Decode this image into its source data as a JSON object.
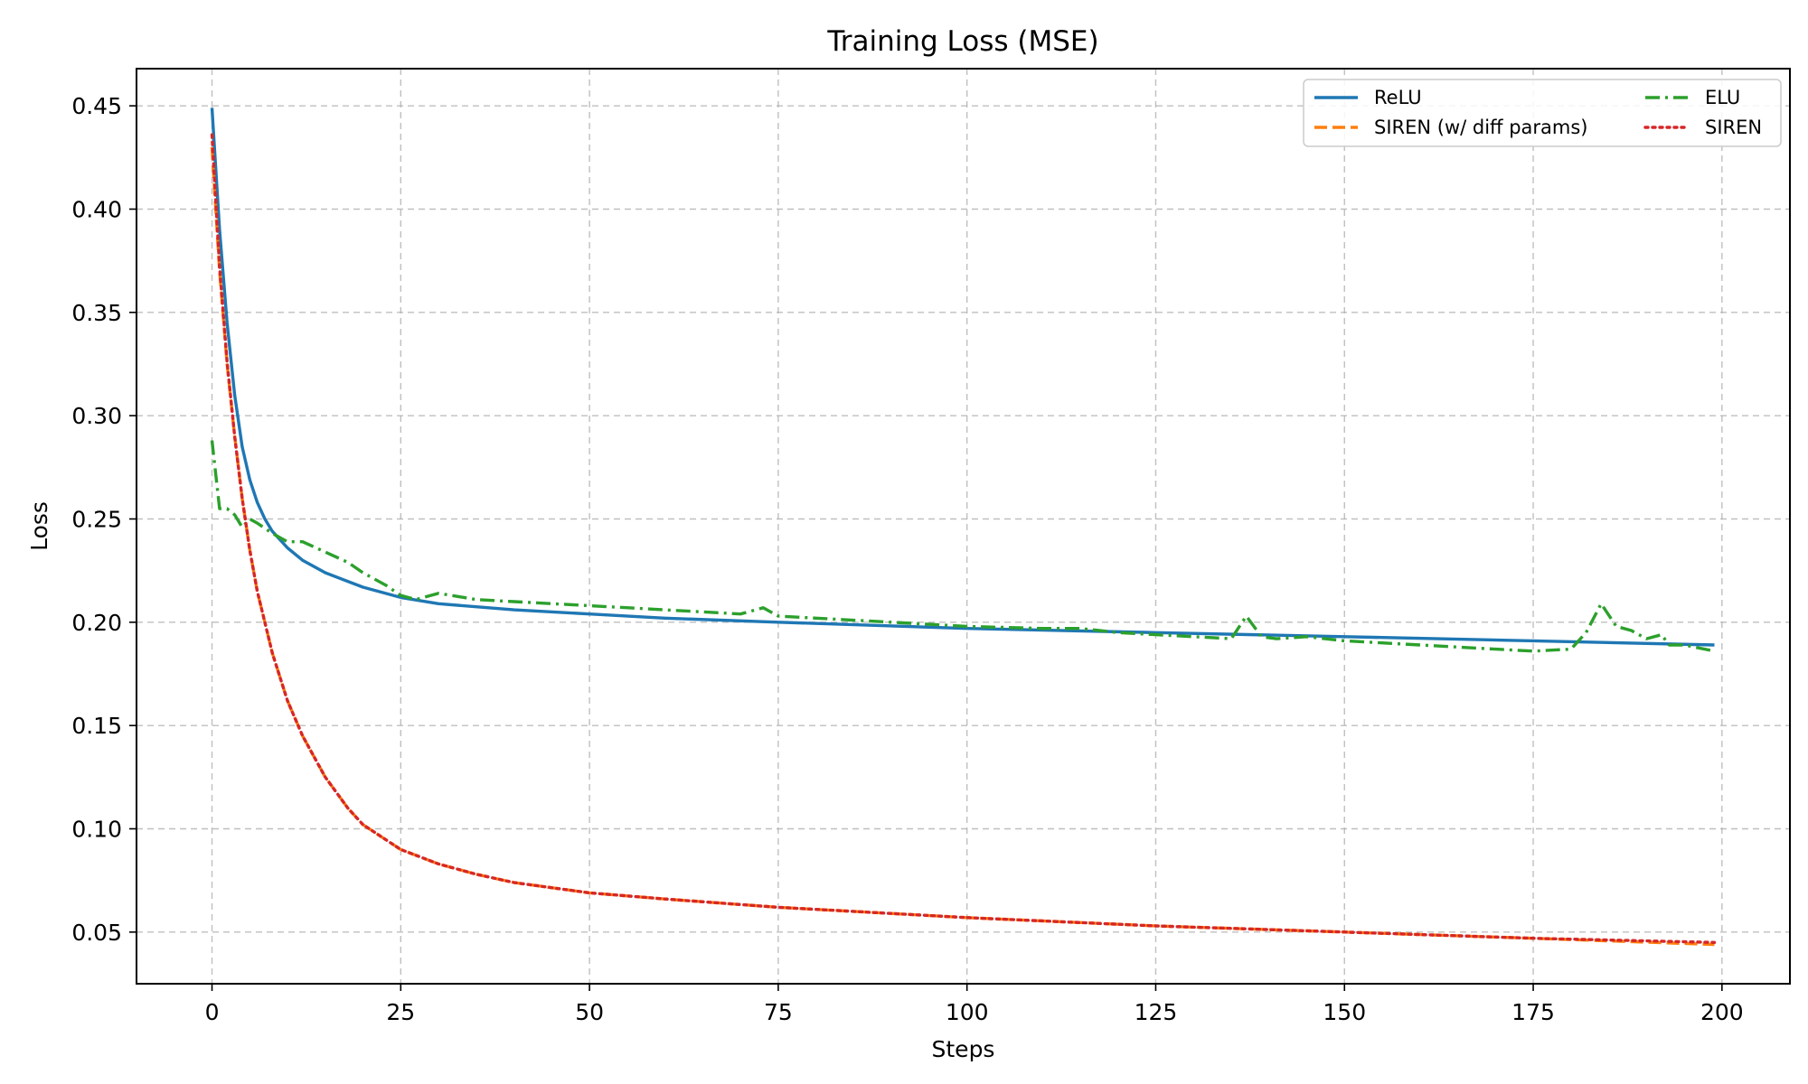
{
  "chart_data": {
    "type": "line",
    "title": "Training Loss (MSE)",
    "xlabel": "Steps",
    "ylabel": "Loss",
    "xlim": [
      -10,
      209
    ],
    "ylim": [
      0.025,
      0.468
    ],
    "xticks": [
      0,
      25,
      50,
      75,
      100,
      125,
      150,
      175,
      200
    ],
    "xtick_labels": [
      "0",
      "25",
      "50",
      "75",
      "100",
      "125",
      "150",
      "175",
      "200"
    ],
    "yticks": [
      0.05,
      0.1,
      0.15,
      0.2,
      0.25,
      0.3,
      0.35,
      0.4,
      0.45
    ],
    "ytick_labels": [
      "0.05",
      "0.10",
      "0.15",
      "0.20",
      "0.25",
      "0.30",
      "0.35",
      "0.40",
      "0.45"
    ],
    "grid": true,
    "legend_position": "top-right",
    "series": [
      {
        "name": "ReLU",
        "color": "#1f77b4",
        "style": "solid",
        "points": [
          [
            0,
            0.449
          ],
          [
            1,
            0.39
          ],
          [
            2,
            0.345
          ],
          [
            3,
            0.31
          ],
          [
            4,
            0.285
          ],
          [
            5,
            0.269
          ],
          [
            6,
            0.258
          ],
          [
            7,
            0.25
          ],
          [
            8,
            0.244
          ],
          [
            10,
            0.236
          ],
          [
            12,
            0.23
          ],
          [
            15,
            0.224
          ],
          [
            20,
            0.217
          ],
          [
            25,
            0.212
          ],
          [
            30,
            0.209
          ],
          [
            40,
            0.206
          ],
          [
            50,
            0.204
          ],
          [
            60,
            0.202
          ],
          [
            75,
            0.2
          ],
          [
            100,
            0.197
          ],
          [
            125,
            0.195
          ],
          [
            150,
            0.193
          ],
          [
            175,
            0.191
          ],
          [
            199,
            0.189
          ]
        ]
      },
      {
        "name": "SIREN (w/ diff params)",
        "color": "#ff7f0e",
        "style": "dashed",
        "points": [
          [
            0,
            0.43
          ],
          [
            1,
            0.37
          ],
          [
            2,
            0.325
          ],
          [
            3,
            0.29
          ],
          [
            4,
            0.26
          ],
          [
            5,
            0.235
          ],
          [
            6,
            0.215
          ],
          [
            8,
            0.185
          ],
          [
            10,
            0.162
          ],
          [
            12,
            0.145
          ],
          [
            15,
            0.125
          ],
          [
            18,
            0.11
          ],
          [
            20,
            0.102
          ],
          [
            25,
            0.09
          ],
          [
            30,
            0.083
          ],
          [
            35,
            0.078
          ],
          [
            40,
            0.074
          ],
          [
            50,
            0.069
          ],
          [
            60,
            0.066
          ],
          [
            75,
            0.062
          ],
          [
            100,
            0.057
          ],
          [
            125,
            0.053
          ],
          [
            150,
            0.05
          ],
          [
            175,
            0.047
          ],
          [
            199,
            0.044
          ]
        ]
      },
      {
        "name": "ELU",
        "color": "#2ca02c",
        "style": "dashdot",
        "points": [
          [
            0,
            0.288
          ],
          [
            1,
            0.255
          ],
          [
            2,
            0.255
          ],
          [
            3,
            0.252
          ],
          [
            4,
            0.246
          ],
          [
            5,
            0.25
          ],
          [
            6,
            0.248
          ],
          [
            8,
            0.243
          ],
          [
            10,
            0.239
          ],
          [
            12,
            0.239
          ],
          [
            15,
            0.234
          ],
          [
            18,
            0.229
          ],
          [
            20,
            0.224
          ],
          [
            23,
            0.218
          ],
          [
            25,
            0.213
          ],
          [
            27,
            0.211
          ],
          [
            30,
            0.214
          ],
          [
            35,
            0.211
          ],
          [
            40,
            0.21
          ],
          [
            50,
            0.208
          ],
          [
            60,
            0.206
          ],
          [
            70,
            0.204
          ],
          [
            73,
            0.207
          ],
          [
            75,
            0.203
          ],
          [
            80,
            0.202
          ],
          [
            90,
            0.2
          ],
          [
            100,
            0.198
          ],
          [
            110,
            0.197
          ],
          [
            115,
            0.197
          ],
          [
            120,
            0.195
          ],
          [
            125,
            0.194
          ],
          [
            130,
            0.193
          ],
          [
            135,
            0.192
          ],
          [
            137,
            0.203
          ],
          [
            139,
            0.193
          ],
          [
            141,
            0.192
          ],
          [
            145,
            0.193
          ],
          [
            150,
            0.191
          ],
          [
            155,
            0.19
          ],
          [
            160,
            0.189
          ],
          [
            165,
            0.188
          ],
          [
            170,
            0.187
          ],
          [
            175,
            0.186
          ],
          [
            180,
            0.187
          ],
          [
            182,
            0.195
          ],
          [
            184,
            0.209
          ],
          [
            186,
            0.198
          ],
          [
            188,
            0.196
          ],
          [
            190,
            0.192
          ],
          [
            192,
            0.194
          ],
          [
            193,
            0.189
          ],
          [
            195,
            0.189
          ],
          [
            199,
            0.186
          ]
        ]
      },
      {
        "name": "SIREN",
        "color": "#d62728",
        "style": "dotted",
        "points": [
          [
            0,
            0.436
          ],
          [
            1,
            0.372
          ],
          [
            2,
            0.326
          ],
          [
            3,
            0.29
          ],
          [
            4,
            0.26
          ],
          [
            5,
            0.235
          ],
          [
            6,
            0.215
          ],
          [
            8,
            0.185
          ],
          [
            10,
            0.162
          ],
          [
            12,
            0.145
          ],
          [
            15,
            0.125
          ],
          [
            18,
            0.11
          ],
          [
            20,
            0.102
          ],
          [
            25,
            0.09
          ],
          [
            30,
            0.083
          ],
          [
            35,
            0.078
          ],
          [
            40,
            0.074
          ],
          [
            50,
            0.069
          ],
          [
            60,
            0.066
          ],
          [
            75,
            0.062
          ],
          [
            100,
            0.057
          ],
          [
            125,
            0.053
          ],
          [
            150,
            0.05
          ],
          [
            175,
            0.047
          ],
          [
            199,
            0.045
          ]
        ]
      }
    ]
  }
}
